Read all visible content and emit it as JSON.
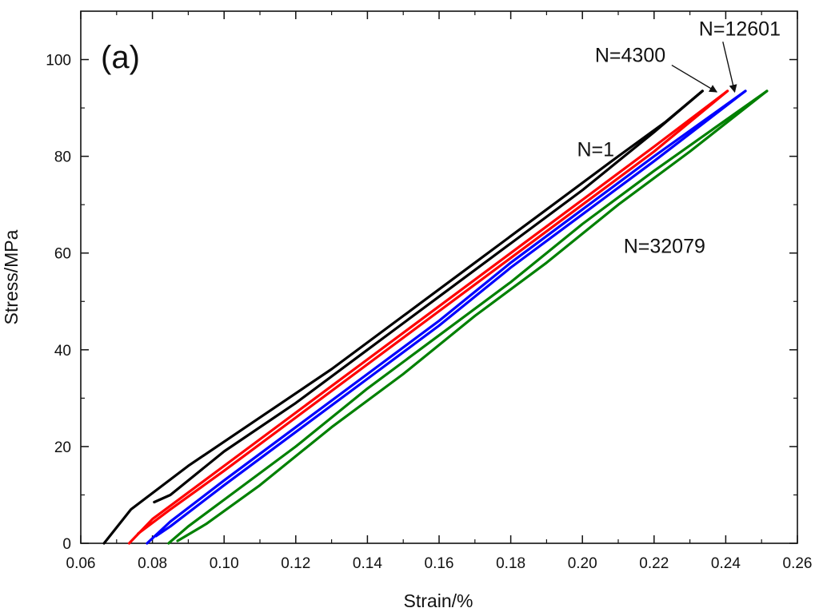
{
  "chart_data": {
    "type": "line",
    "title": "",
    "panel_label": "(a)",
    "xlabel": "Strain/%",
    "ylabel": "Stress/MPa",
    "xlim": [
      0.06,
      0.26
    ],
    "ylim": [
      0,
      110
    ],
    "xticks": [
      "0.06",
      "0.08",
      "0.10",
      "0.12",
      "0.14",
      "0.16",
      "0.18",
      "0.20",
      "0.22",
      "0.24",
      "0.26"
    ],
    "yticks": [
      "0",
      "20",
      "40",
      "60",
      "80",
      "100"
    ],
    "grid": false,
    "series": [
      {
        "name": "N=1",
        "color": "#000000",
        "loading": [
          [
            0.0665,
            0
          ],
          [
            0.074,
            7
          ],
          [
            0.09,
            16
          ],
          [
            0.11,
            26
          ],
          [
            0.13,
            36
          ],
          [
            0.15,
            47
          ],
          [
            0.17,
            58
          ],
          [
            0.19,
            69
          ],
          [
            0.21,
            80
          ],
          [
            0.223,
            87
          ],
          [
            0.2335,
            93.5
          ]
        ],
        "unloading": [
          [
            0.2335,
            93.5
          ],
          [
            0.22,
            85
          ],
          [
            0.2,
            73
          ],
          [
            0.18,
            62
          ],
          [
            0.16,
            51
          ],
          [
            0.14,
            40
          ],
          [
            0.12,
            29
          ],
          [
            0.1,
            19
          ],
          [
            0.085,
            10
          ],
          [
            0.0805,
            8.5
          ]
        ]
      },
      {
        "name": "N=4300",
        "color": "#ff0000",
        "loading": [
          [
            0.0735,
            0
          ],
          [
            0.08,
            5
          ],
          [
            0.1,
            16
          ],
          [
            0.12,
            27
          ],
          [
            0.14,
            38
          ],
          [
            0.16,
            49
          ],
          [
            0.18,
            60
          ],
          [
            0.2,
            71
          ],
          [
            0.22,
            82
          ],
          [
            0.2405,
            93.5
          ]
        ],
        "unloading": [
          [
            0.2405,
            93.5
          ],
          [
            0.22,
            81
          ],
          [
            0.2,
            70
          ],
          [
            0.18,
            59
          ],
          [
            0.16,
            48
          ],
          [
            0.14,
            37
          ],
          [
            0.12,
            26
          ],
          [
            0.1,
            15
          ],
          [
            0.085,
            7
          ],
          [
            0.076,
            2
          ]
        ]
      },
      {
        "name": "N=12601",
        "color": "#0000ff",
        "loading": [
          [
            0.0785,
            0
          ],
          [
            0.085,
            4.5
          ],
          [
            0.1,
            13
          ],
          [
            0.12,
            24
          ],
          [
            0.14,
            35
          ],
          [
            0.16,
            46
          ],
          [
            0.18,
            58
          ],
          [
            0.2,
            69
          ],
          [
            0.22,
            80
          ],
          [
            0.2455,
            93.5
          ]
        ],
        "unloading": [
          [
            0.2455,
            93.5
          ],
          [
            0.22,
            79
          ],
          [
            0.2,
            68
          ],
          [
            0.18,
            57
          ],
          [
            0.16,
            45
          ],
          [
            0.14,
            34
          ],
          [
            0.12,
            23
          ],
          [
            0.1,
            12
          ],
          [
            0.085,
            3.5
          ],
          [
            0.081,
            1.5
          ]
        ]
      },
      {
        "name": "N=32079",
        "color": "#008000",
        "loading": [
          [
            0.0845,
            0
          ],
          [
            0.09,
            3.5
          ],
          [
            0.1,
            9
          ],
          [
            0.12,
            20
          ],
          [
            0.14,
            32
          ],
          [
            0.16,
            43
          ],
          [
            0.18,
            54
          ],
          [
            0.2,
            66
          ],
          [
            0.22,
            77
          ],
          [
            0.2515,
            93.5
          ]
        ],
        "unloading": [
          [
            0.2515,
            93.5
          ],
          [
            0.23,
            81
          ],
          [
            0.21,
            70
          ],
          [
            0.19,
            58
          ],
          [
            0.17,
            47
          ],
          [
            0.15,
            35
          ],
          [
            0.13,
            24
          ],
          [
            0.11,
            12
          ],
          [
            0.095,
            4
          ],
          [
            0.087,
            0.5
          ]
        ]
      }
    ],
    "annotations": [
      {
        "text": "N=1",
        "series": "N=1",
        "at": [
          0.1985,
          80
        ],
        "arrow": false
      },
      {
        "text": "N=4300",
        "series": "N=4300",
        "at": [
          0.2035,
          99.5
        ],
        "arrow": true,
        "arrow_to": [
          0.2375,
          93.3
        ]
      },
      {
        "text": "N=12601",
        "series": "N=12601",
        "at": [
          0.2325,
          105
        ],
        "arrow": true,
        "arrow_to": [
          0.2425,
          93.3
        ]
      },
      {
        "text": "N=32079",
        "series": "N=32079",
        "at": [
          0.2115,
          60
        ],
        "arrow": false
      }
    ]
  }
}
